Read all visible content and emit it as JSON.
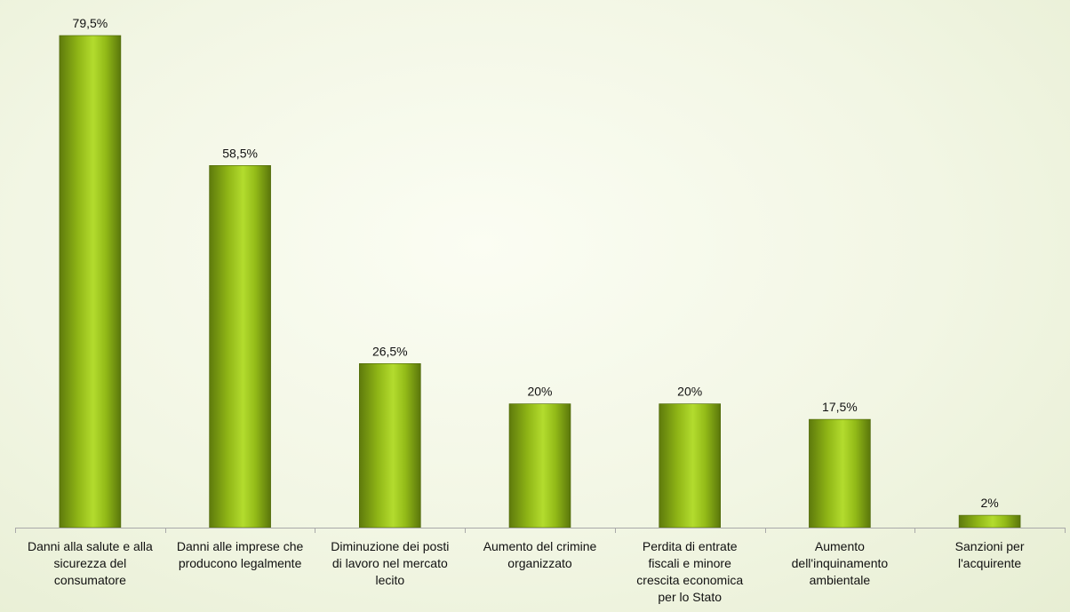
{
  "chart_data": {
    "type": "bar",
    "categories": [
      [
        "Danni alla salute e alla",
        "sicurezza del",
        "consumatore"
      ],
      [
        "Danni alle imprese che",
        "producono legalmente"
      ],
      [
        "Diminuzione dei posti",
        "di lavoro nel mercato",
        "lecito"
      ],
      [
        "Aumento del crimine",
        "organizzato"
      ],
      [
        "Perdita di entrate",
        "fiscali e minore",
        "crescita economica",
        "per lo Stato"
      ],
      [
        "Aumento",
        "dell'inquinamento",
        "ambientale"
      ],
      [
        "Sanzioni per",
        "l'acquirente"
      ]
    ],
    "values": [
      79.5,
      58.5,
      26.5,
      20,
      20,
      17.5,
      2
    ],
    "value_labels": [
      "79,5%",
      "58,5%",
      "26,5%",
      "20%",
      "20%",
      "17,5%",
      "2%"
    ],
    "ylim": [
      0,
      80
    ],
    "grid": false,
    "legend": "none",
    "colors": {
      "bar_dark": "#5e7a0c",
      "bar_mid": "#a4cd1c",
      "bar_light": "#c6e85a",
      "axis": "#a9a9a9"
    }
  }
}
